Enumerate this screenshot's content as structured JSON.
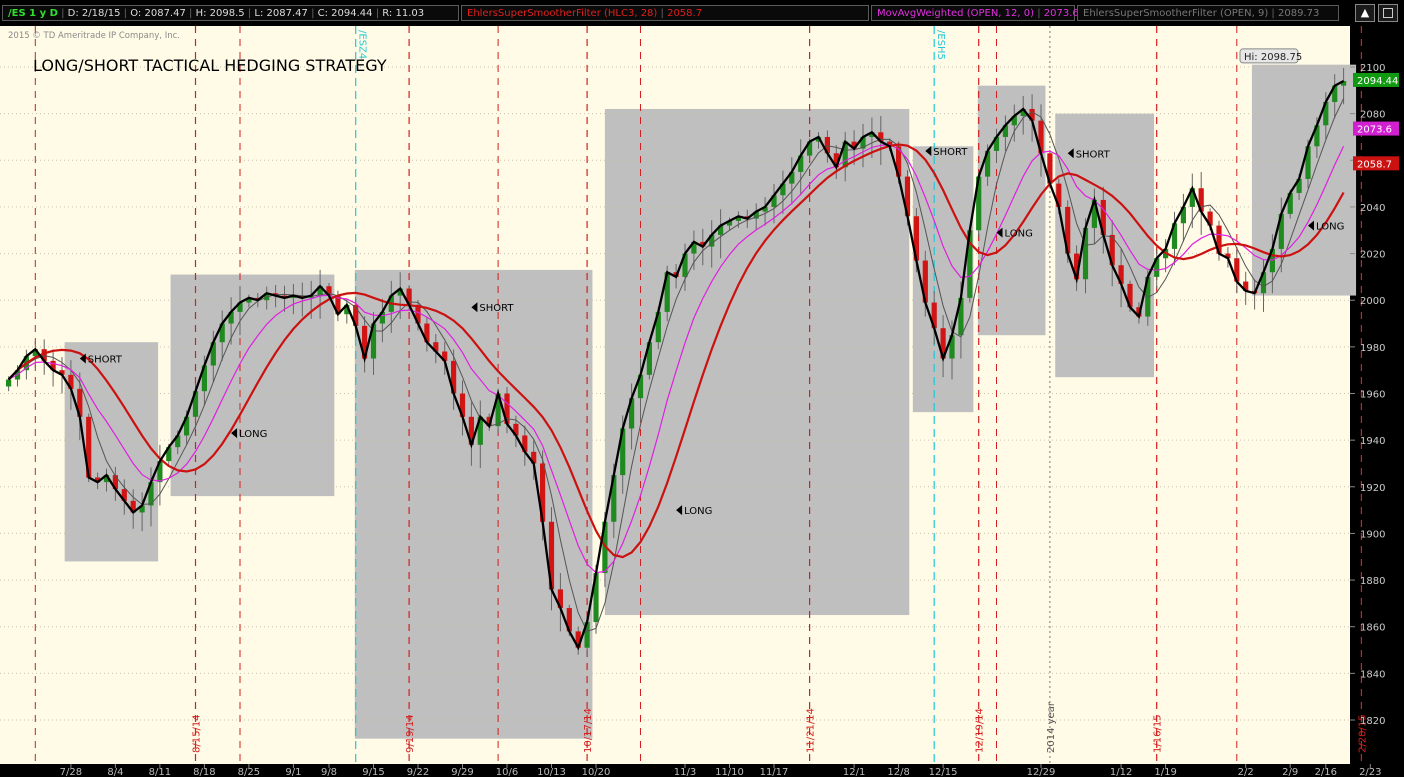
{
  "header": {
    "symbol": "/ES 1 y D",
    "date": "D: 2/18/15",
    "open": "O: 2087.47",
    "high": "H: 2098.5",
    "low": "L: 2087.47",
    "close": "C: 2094.44",
    "range": "R: 11.03",
    "study1": "EhlersSuperSmootherFilter (HLC3, 28)",
    "study1_value": "2058.7",
    "study2": "MovAvgWeighted (OPEN, 12, 0)",
    "study2_value": "2073.6",
    "study3": "EhlersSuperSmootherFilter (OPEN, 9)",
    "study3_value": "2089.73"
  },
  "copyright": "2015 © TD Ameritrade IP Company, Inc.",
  "colors": {
    "background": "#fffbe6",
    "up_candle": "#1f8a1f",
    "down_candle": "#d21414",
    "smoother28": "#cc1111",
    "wma12": "#e020e0",
    "price_line": "#000000",
    "zone": "#bfbfbf",
    "event_line": "#d31f1f",
    "roll_line": "#21c8d8"
  },
  "chart_data": {
    "type": "candlestick",
    "title": "LONG/SHORT TACTICAL HEDGING STRATEGY",
    "ylim": [
      1810,
      2108
    ],
    "y_ticks": [
      1820,
      1840,
      1860,
      1880,
      1900,
      1920,
      1940,
      1960,
      1980,
      2000,
      2020,
      2040,
      2060,
      2080,
      2100
    ],
    "x_ticks": [
      {
        "label": "7/28",
        "i": 7
      },
      {
        "label": "8/4",
        "i": 12
      },
      {
        "label": "8/11",
        "i": 17
      },
      {
        "label": "8/18",
        "i": 22
      },
      {
        "label": "8/25",
        "i": 27
      },
      {
        "label": "9/1",
        "i": 32
      },
      {
        "label": "9/8",
        "i": 36
      },
      {
        "label": "9/15",
        "i": 41
      },
      {
        "label": "9/22",
        "i": 46
      },
      {
        "label": "9/29",
        "i": 51
      },
      {
        "label": "10/6",
        "i": 56
      },
      {
        "label": "10/13",
        "i": 61
      },
      {
        "label": "10/20",
        "i": 66
      },
      {
        "label": "11/3",
        "i": 76
      },
      {
        "label": "11/10",
        "i": 81
      },
      {
        "label": "11/17",
        "i": 86
      },
      {
        "label": "12/1",
        "i": 95
      },
      {
        "label": "12/8",
        "i": 100
      },
      {
        "label": "12/15",
        "i": 105
      },
      {
        "label": "12/29",
        "i": 116
      },
      {
        "label": "1/12",
        "i": 125
      },
      {
        "label": "1/19",
        "i": 130
      },
      {
        "label": "2/2",
        "i": 139
      },
      {
        "label": "2/9",
        "i": 144
      },
      {
        "label": "2/16",
        "i": 148
      },
      {
        "label": "2/23",
        "i": 153
      }
    ],
    "event_lines": [
      {
        "label": "8/15/14",
        "i": 21
      },
      {
        "label": "9/19/14",
        "i": 45
      },
      {
        "label": "10/17/14",
        "i": 65
      },
      {
        "label": "11/21/14",
        "i": 90
      },
      {
        "label": "12/19/14",
        "i": 109
      },
      {
        "label": "1/16/15",
        "i": 129
      },
      {
        "label": "2/20/15",
        "i": 152
      }
    ],
    "extra_dashed": [
      {
        "i": 3
      },
      {
        "i": 26
      },
      {
        "i": 55
      },
      {
        "i": 71
      },
      {
        "i": 111
      },
      {
        "i": 138
      }
    ],
    "year_marker": {
      "label": "2014 year",
      "i": 117
    },
    "roll_lines": [
      {
        "label": "/ESZ4",
        "i": 39
      },
      {
        "label": "/ESH5",
        "i": 104
      }
    ],
    "zones": [
      {
        "i0": 6.3,
        "i1": 16.8,
        "top": 1982,
        "bottom": 1888,
        "label": "SHORT",
        "li": 8,
        "ly": 1975
      },
      {
        "i0": 18.2,
        "i1": 36.6,
        "top": 2011,
        "bottom": 1916,
        "label": "LONG",
        "li": 25,
        "ly": 1943
      },
      {
        "i0": 38.9,
        "i1": 65.6,
        "top": 2013,
        "bottom": 1812,
        "label": "SHORT",
        "li": 52,
        "ly": 1997
      },
      {
        "i0": 67,
        "i1": 101.2,
        "top": 2082,
        "bottom": 1865,
        "label": "LONG",
        "li": 75,
        "ly": 1910
      },
      {
        "i0": 101.6,
        "i1": 108.4,
        "top": 2066,
        "bottom": 1952,
        "label": "SHORT",
        "li": 103,
        "ly": 2064
      },
      {
        "i0": 108.9,
        "i1": 116.5,
        "top": 2092,
        "bottom": 1985,
        "label": "LONG",
        "li": 111,
        "ly": 2029
      },
      {
        "i0": 117.6,
        "i1": 128.7,
        "top": 2080,
        "bottom": 1967,
        "label": "SHORT",
        "li": 119,
        "ly": 2063
      },
      {
        "i0": 139.7,
        "i1": 151.4,
        "top": 2101,
        "bottom": 2002,
        "label": "LONG",
        "li": 146,
        "ly": 2032
      }
    ],
    "hi_label": "Hi: 2098.75",
    "last_price_labels": [
      {
        "value": 2094.44,
        "text": "2094.44",
        "color": "#119911"
      },
      {
        "value": 2073.6,
        "text": "2073.6",
        "color": "#d020d0"
      },
      {
        "value": 2058.7,
        "text": "2058.7",
        "color": "#cc1111"
      }
    ],
    "close": [
      1966,
      1970,
      1976,
      1979,
      1974,
      1970,
      1968,
      1962,
      1950,
      1924,
      1922,
      1925,
      1919,
      1914,
      1909,
      1912,
      1922,
      1931,
      1937,
      1942,
      1950,
      1961,
      1972,
      1982,
      1990,
      1995,
      1999,
      2001,
      2000,
      2003,
      2002,
      2001,
      2002,
      2001,
      2002,
      2006,
      2002,
      1994,
      1998,
      1989,
      1975,
      1990,
      1995,
      2002,
      2005,
      1998,
      1990,
      1982,
      1978,
      1974,
      1960,
      1950,
      1938,
      1950,
      1946,
      1960,
      1947,
      1942,
      1935,
      1930,
      1905,
      1876,
      1868,
      1858,
      1851,
      1862,
      1883,
      1905,
      1925,
      1945,
      1958,
      1968,
      1982,
      1995,
      2012,
      2010,
      2020,
      2025,
      2023,
      2028,
      2032,
      2034,
      2036,
      2035,
      2038,
      2040,
      2045,
      2050,
      2055,
      2062,
      2068,
      2070,
      2063,
      2057,
      2068,
      2065,
      2070,
      2072,
      2068,
      2066,
      2053,
      2036,
      2017,
      1999,
      1988,
      1975,
      1985,
      2001,
      2030,
      2053,
      2064,
      2070,
      2075,
      2079,
      2082,
      2077,
      2063,
      2050,
      2040,
      2020,
      2009,
      2031,
      2043,
      2028,
      2015,
      2007,
      1997,
      1993,
      2010,
      2018,
      2022,
      2033,
      2040,
      2048,
      2038,
      2032,
      2020,
      2018,
      2008,
      2004,
      2003,
      2012,
      2022,
      2037,
      2046,
      2052,
      2066,
      2075,
      2085,
      2092,
      2094
    ]
  }
}
